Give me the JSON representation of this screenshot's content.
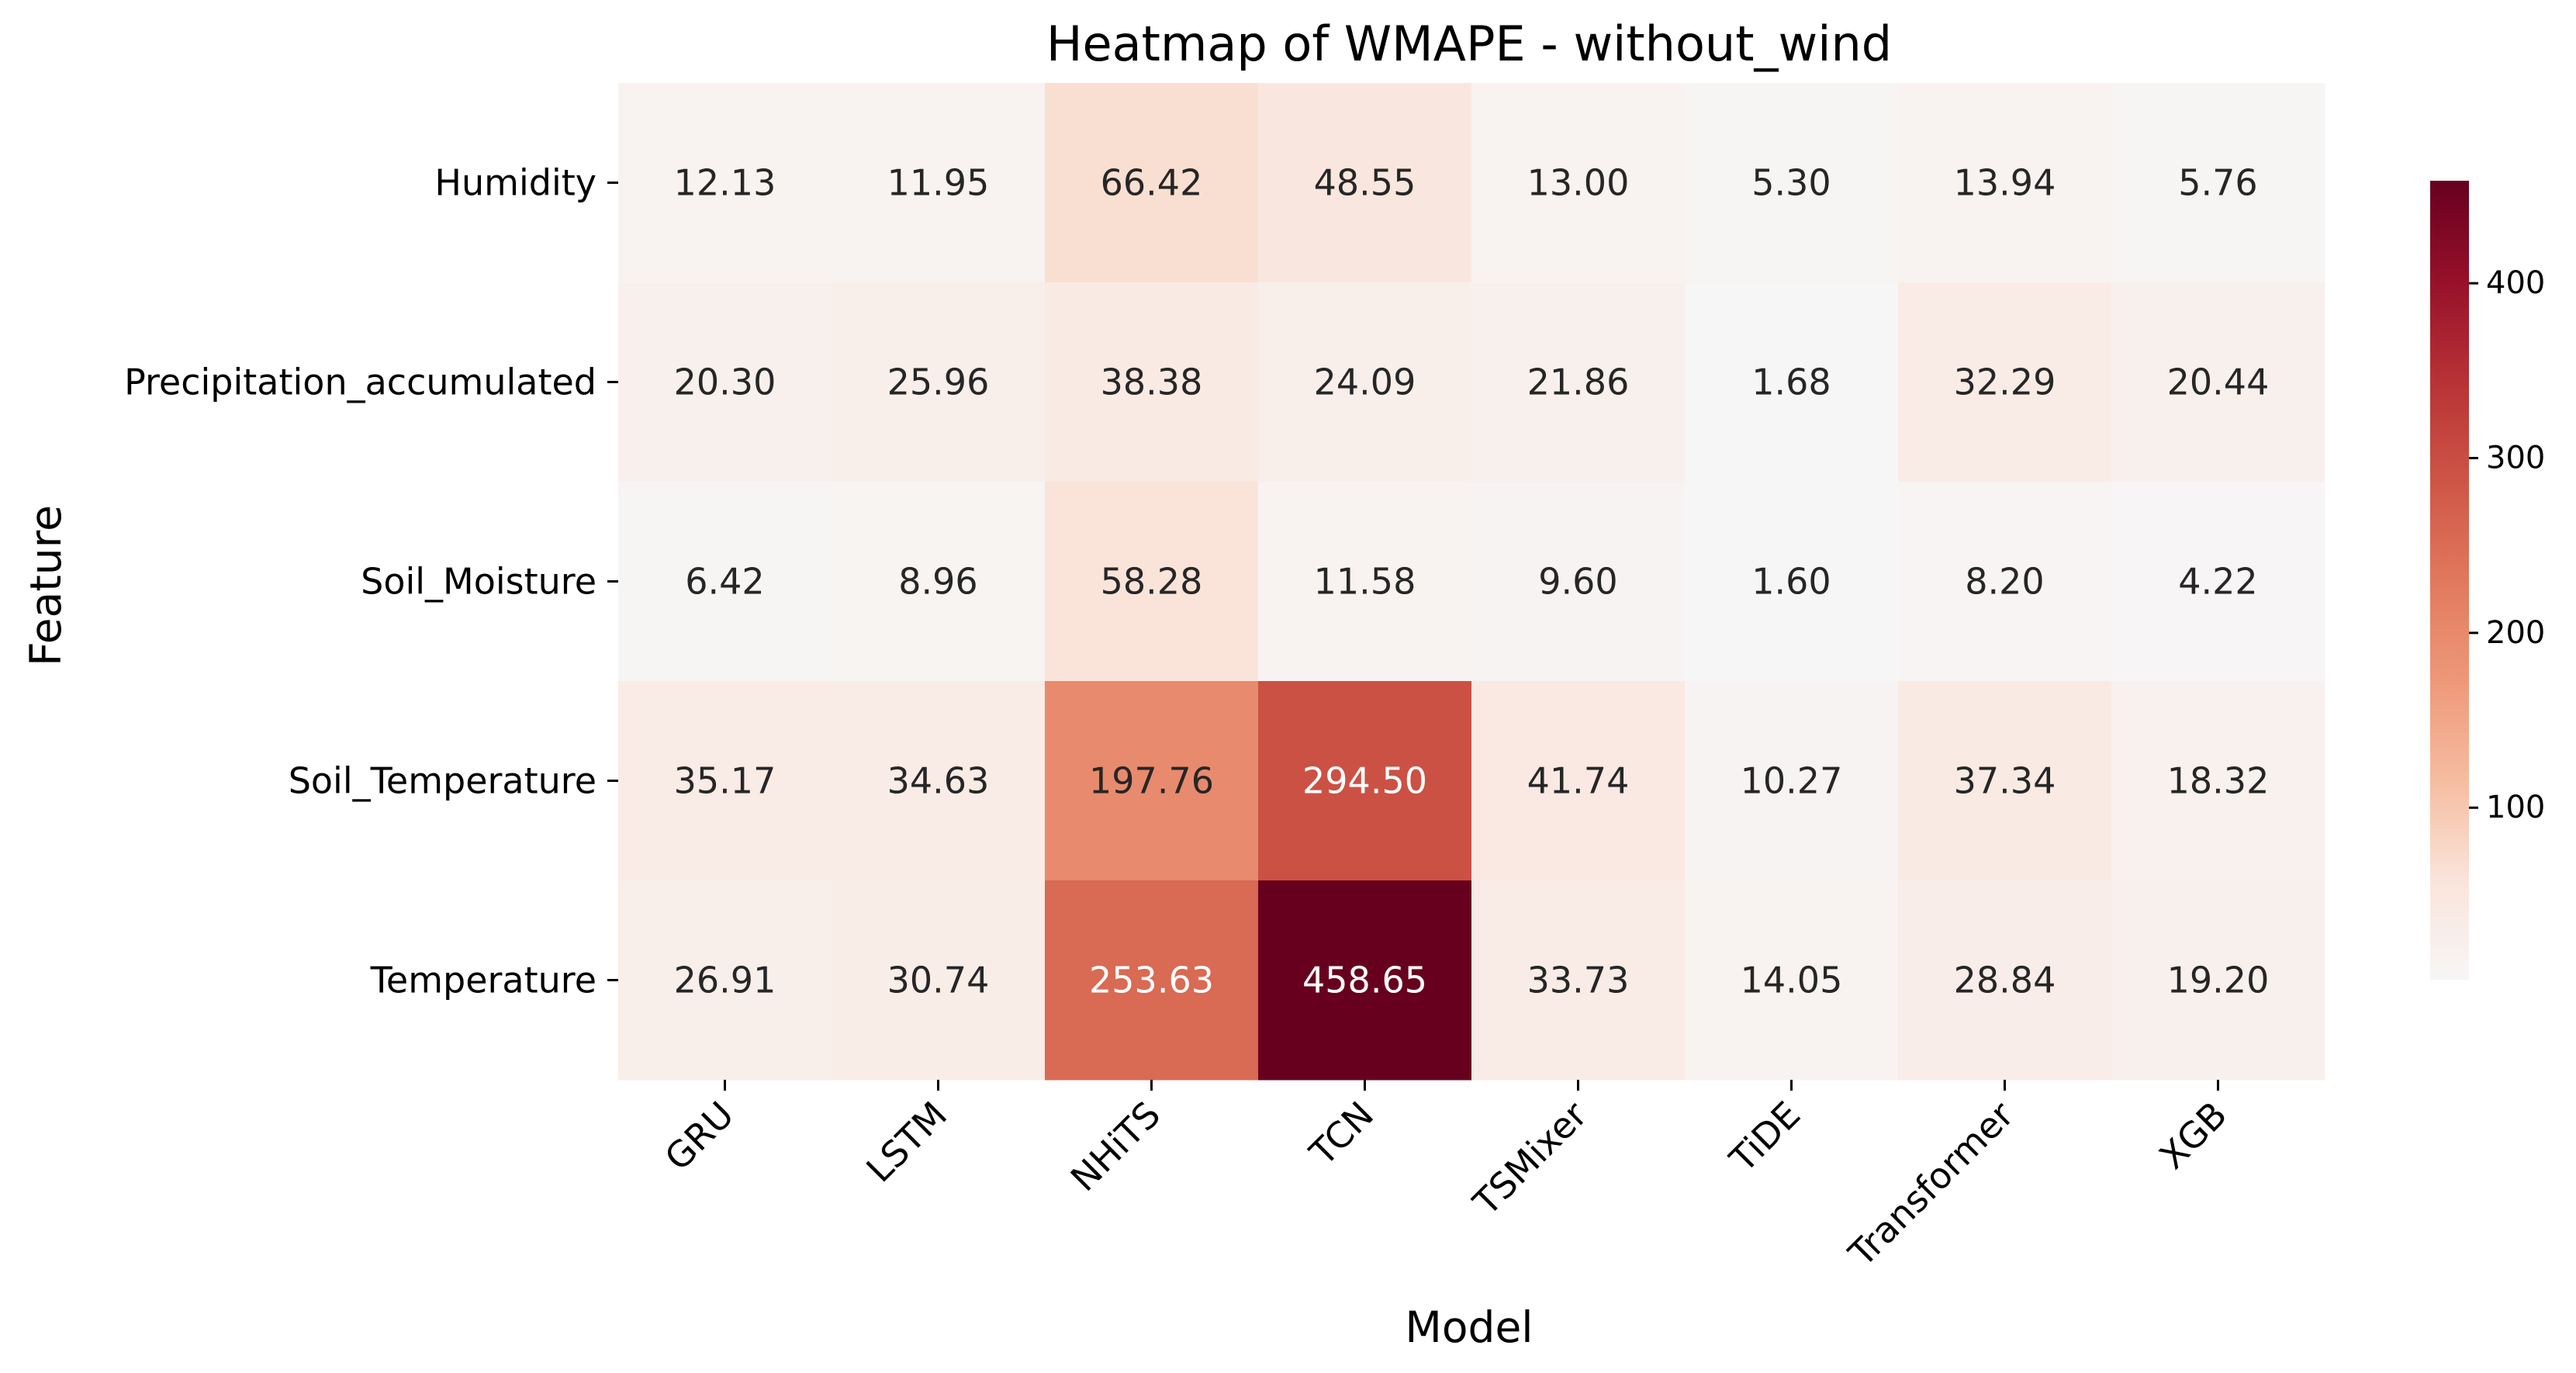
{
  "chart_data": {
    "type": "heatmap",
    "title": "Heatmap of WMAPE - without_wind",
    "xlabel": "Model",
    "ylabel": "Feature",
    "x_categories": [
      "GRU",
      "LSTM",
      "NHiTS",
      "TCN",
      "TSMixer",
      "TiDE",
      "Transformer",
      "XGB"
    ],
    "y_categories": [
      "Humidity",
      "Precipitation_accumulated",
      "Soil_Moisture",
      "Soil_Temperature",
      "Temperature"
    ],
    "values": [
      [
        12.13,
        11.95,
        66.42,
        48.55,
        13.0,
        5.3,
        13.94,
        5.76
      ],
      [
        20.3,
        25.96,
        38.38,
        24.09,
        21.86,
        1.68,
        32.29,
        20.44
      ],
      [
        6.42,
        8.96,
        58.28,
        11.58,
        9.6,
        1.6,
        8.2,
        4.22
      ],
      [
        35.17,
        34.63,
        197.76,
        294.5,
        41.74,
        10.27,
        37.34,
        18.32
      ],
      [
        26.91,
        30.74,
        253.63,
        458.65,
        33.73,
        14.05,
        28.84,
        19.2
      ]
    ],
    "value_format": "0.00",
    "colormap": "Reds (light to dark)",
    "colorbar": {
      "range": [
        1.6,
        458.65
      ],
      "ticks": [
        100,
        200,
        300,
        400
      ],
      "placement": "right"
    },
    "grid": false,
    "colors": {
      "low": "#f7f6f6",
      "high": "#67001f",
      "dark_text": "#262626",
      "light_text": "#ffffff"
    }
  }
}
